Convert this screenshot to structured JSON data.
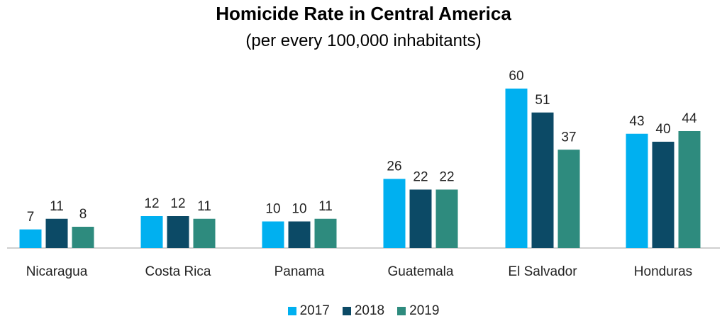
{
  "chart_data": {
    "type": "bar",
    "title": "Homicide Rate in Central America",
    "subtitle": "(per every 100,000 inhabitants)",
    "xlabel": "",
    "ylabel": "",
    "categories": [
      "Nicaragua",
      "Costa Rica",
      "Panama",
      "Guatemala",
      "El Salvador",
      "Honduras"
    ],
    "series": [
      {
        "name": "2017",
        "color": "#00b0f0",
        "values": [
          7,
          12,
          10,
          26,
          60,
          43
        ]
      },
      {
        "name": "2018",
        "color": "#0c4a66",
        "values": [
          11,
          12,
          10,
          22,
          51,
          40
        ]
      },
      {
        "name": "2019",
        "color": "#2e8b7e",
        "values": [
          8,
          11,
          11,
          22,
          37,
          44
        ]
      }
    ],
    "ylim": [
      0,
      60
    ],
    "grid": false,
    "legend_position": "bottom"
  }
}
